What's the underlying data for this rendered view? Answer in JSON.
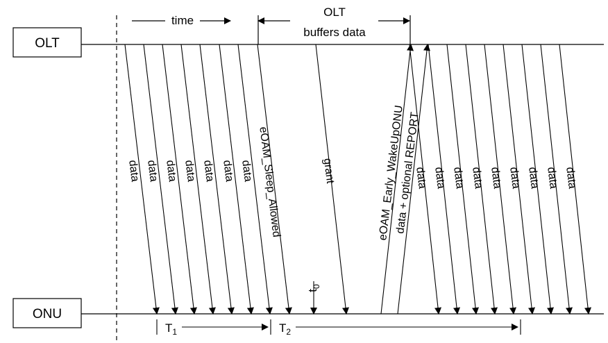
{
  "nodes": {
    "olt": "OLT",
    "onu": "ONU"
  },
  "header": {
    "time": "time",
    "olt_buffer_line1": "OLT",
    "olt_buffer_line2": "buffers data"
  },
  "messages": {
    "data": "data",
    "sleep_allowed": "eOAM_Sleep_Allowed",
    "grant": "grant",
    "early_wakeup": "eOAM_Early_WakeUpONU",
    "data_report": "data + optional REPORT"
  },
  "timing": {
    "t0": "t",
    "t0_sub": "0",
    "t1": "T",
    "t1_sub": "1",
    "t2": "T",
    "t2_sub": "2"
  },
  "colors": {
    "line": "#000000",
    "background": "#ffffff"
  }
}
